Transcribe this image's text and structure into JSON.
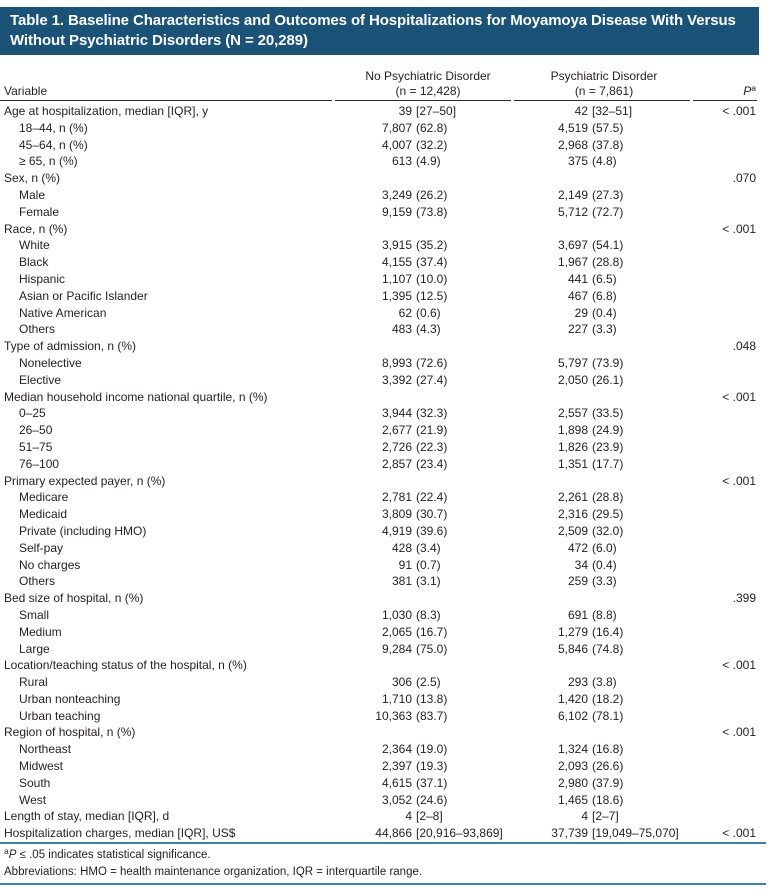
{
  "title": "Table 1. Baseline Characteristics and Outcomes of Hospitalizations for Moyamoya Disease With Versus Without Psychiatric Disorders (N = 20,289)",
  "columns": {
    "variable": "Variable",
    "no_psych_line1": "No Psychiatric Disorder",
    "no_psych_line2": "(n = 12,428)",
    "psych_line1": "Psychiatric Disorder",
    "psych_line2": "(n = 7,861)",
    "p_italic": "P",
    "p_sup": "a"
  },
  "rows": [
    {
      "label": "Age at hospitalization, median [IQR], y",
      "indent": 0,
      "no_psych": "39 [27–50]",
      "psych": "42 [32–51]",
      "p": "< .001"
    },
    {
      "label": "18–44, n (%)",
      "indent": 1,
      "no_psych": "7,807 (62.8)",
      "psych": "4,519 (57.5)",
      "p": ""
    },
    {
      "label": "45–64, n (%)",
      "indent": 1,
      "no_psych": "4,007 (32.2)",
      "psych": "2,968 (37.8)",
      "p": ""
    },
    {
      "label": "≥ 65, n (%)",
      "indent": 1,
      "no_psych": "613 (4.9)",
      "psych": "375 (4.8)",
      "p": ""
    },
    {
      "label": "Sex, n (%)",
      "indent": 0,
      "no_psych": "",
      "psych": "",
      "p": ".070"
    },
    {
      "label": "Male",
      "indent": 1,
      "no_psych": "3,249 (26.2)",
      "psych": "2,149 (27.3)",
      "p": ""
    },
    {
      "label": "Female",
      "indent": 1,
      "no_psych": "9,159 (73.8)",
      "psych": "5,712 (72.7)",
      "p": ""
    },
    {
      "label": "Race, n (%)",
      "indent": 0,
      "no_psych": "",
      "psych": "",
      "p": "< .001"
    },
    {
      "label": "White",
      "indent": 1,
      "no_psych": "3,915 (35.2)",
      "psych": "3,697 (54.1)",
      "p": ""
    },
    {
      "label": "Black",
      "indent": 1,
      "no_psych": "4,155 (37.4)",
      "psych": "1,967 (28.8)",
      "p": ""
    },
    {
      "label": "Hispanic",
      "indent": 1,
      "no_psych": "1,107 (10.0)",
      "psych": "441 (6.5)",
      "p": ""
    },
    {
      "label": "Asian or Pacific Islander",
      "indent": 1,
      "no_psych": "1,395 (12.5)",
      "psych": "467 (6.8)",
      "p": ""
    },
    {
      "label": "Native American",
      "indent": 1,
      "no_psych": "62 (0.6)",
      "psych": "29 (0.4)",
      "p": ""
    },
    {
      "label": "Others",
      "indent": 1,
      "no_psych": "483 (4.3)",
      "psych": "227 (3.3)",
      "p": ""
    },
    {
      "label": "Type of admission, n (%)",
      "indent": 0,
      "no_psych": "",
      "psych": "",
      "p": ".048"
    },
    {
      "label": "Nonelective",
      "indent": 1,
      "no_psych": "8,993 (72.6)",
      "psych": "5,797 (73.9)",
      "p": ""
    },
    {
      "label": "Elective",
      "indent": 1,
      "no_psych": "3,392 (27.4)",
      "psych": "2,050 (26.1)",
      "p": ""
    },
    {
      "label": "Median household income national quartile, n (%)",
      "indent": 0,
      "no_psych": "",
      "psych": "",
      "p": "< .001"
    },
    {
      "label": "0–25",
      "indent": 1,
      "no_psych": "3,944 (32.3)",
      "psych": "2,557 (33.5)",
      "p": ""
    },
    {
      "label": "26–50",
      "indent": 1,
      "no_psych": "2,677 (21.9)",
      "psych": "1,898 (24.9)",
      "p": ""
    },
    {
      "label": "51–75",
      "indent": 1,
      "no_psych": "2,726 (22.3)",
      "psych": "1,826 (23.9)",
      "p": ""
    },
    {
      "label": "76–100",
      "indent": 1,
      "no_psych": "2,857 (23.4)",
      "psych": "1,351 (17.7)",
      "p": ""
    },
    {
      "label": "Primary expected payer, n (%)",
      "indent": 0,
      "no_psych": "",
      "psych": "",
      "p": "< .001"
    },
    {
      "label": "Medicare",
      "indent": 1,
      "no_psych": "2,781 (22.4)",
      "psych": "2,261 (28.8)",
      "p": ""
    },
    {
      "label": "Medicaid",
      "indent": 1,
      "no_psych": "3,809 (30.7)",
      "psych": "2,316 (29.5)",
      "p": ""
    },
    {
      "label": "Private (including HMO)",
      "indent": 1,
      "no_psych": "4,919 (39.6)",
      "psych": "2,509 (32.0)",
      "p": ""
    },
    {
      "label": "Self-pay",
      "indent": 1,
      "no_psych": "428 (3.4)",
      "psych": "472 (6.0)",
      "p": ""
    },
    {
      "label": "No charges",
      "indent": 1,
      "no_psych": "91 (0.7)",
      "psych": "34 (0.4)",
      "p": ""
    },
    {
      "label": "Others",
      "indent": 1,
      "no_psych": "381 (3.1)",
      "psych": "259 (3.3)",
      "p": ""
    },
    {
      "label": "Bed size of hospital, n (%)",
      "indent": 0,
      "no_psych": "",
      "psych": "",
      "p": ".399"
    },
    {
      "label": "Small",
      "indent": 1,
      "no_psych": "1,030 (8.3)",
      "psych": "691 (8.8)",
      "p": ""
    },
    {
      "label": "Medium",
      "indent": 1,
      "no_psych": "2,065 (16.7)",
      "psych": "1,279 (16.4)",
      "p": ""
    },
    {
      "label": "Large",
      "indent": 1,
      "no_psych": "9,284 (75.0)",
      "psych": "5,846 (74.8)",
      "p": ""
    },
    {
      "label": "Location/teaching status of the hospital, n (%)",
      "indent": 0,
      "no_psych": "",
      "psych": "",
      "p": "< .001"
    },
    {
      "label": "Rural",
      "indent": 1,
      "no_psych": "306 (2.5)",
      "psych": "293 (3.8)",
      "p": ""
    },
    {
      "label": "Urban nonteaching",
      "indent": 1,
      "no_psych": "1,710 (13.8)",
      "psych": "1,420 (18.2)",
      "p": ""
    },
    {
      "label": "Urban teaching",
      "indent": 1,
      "no_psych": "10,363 (83.7)",
      "psych": "6,102 (78.1)",
      "p": ""
    },
    {
      "label": "Region of hospital, n (%)",
      "indent": 0,
      "no_psych": "",
      "psych": "",
      "p": "< .001"
    },
    {
      "label": "Northeast",
      "indent": 1,
      "no_psych": "2,364 (19.0)",
      "psych": "1,324 (16.8)",
      "p": ""
    },
    {
      "label": "Midwest",
      "indent": 1,
      "no_psych": "2,397 (19.3)",
      "psych": "2,093 (26.6)",
      "p": ""
    },
    {
      "label": "South",
      "indent": 1,
      "no_psych": "4,615 (37.1)",
      "psych": "2,980 (37.9)",
      "p": ""
    },
    {
      "label": "West",
      "indent": 1,
      "no_psych": "3,052 (24.6)",
      "psych": "1,465 (18.6)",
      "p": ""
    },
    {
      "label": "Length of stay, median [IQR], d",
      "indent": 0,
      "no_psych": "4 [2–8]",
      "psych": "4 [2–7]",
      "p": ""
    },
    {
      "label": "Hospitalization charges, median [IQR], US$",
      "indent": 0,
      "no_psych": "44,866 [20,916–93,869]",
      "psych": "37,739 [19,049–75,070]",
      "p": "< .001"
    }
  ],
  "footnotes": {
    "sig_sup": "a",
    "sig_italic": "P",
    "sig_rest": " ≤ .05 indicates statistical significance.",
    "abbrev": "Abbreviations: HMO = health maintenance organization, IQR = interquartile range."
  },
  "colors": {
    "band_blue": "#1B5278",
    "rule_blue": "#3D7FA6",
    "header_rule": "#2F2F2F",
    "text": "#231F20"
  }
}
